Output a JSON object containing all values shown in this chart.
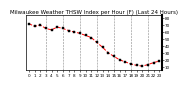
{
  "title": "Milwaukee Weather THSW Index per Hour (F) (Last 24 Hours)",
  "background_color": "#ffffff",
  "line_color": "#ff0000",
  "marker_color": "#000000",
  "grid_color": "#888888",
  "ylim": [
    5,
    85
  ],
  "yticks": [
    10,
    20,
    30,
    40,
    50,
    60,
    70,
    80
  ],
  "hours": [
    0,
    1,
    2,
    3,
    4,
    5,
    6,
    7,
    8,
    9,
    10,
    11,
    12,
    13,
    14,
    15,
    16,
    17,
    18,
    19,
    20,
    21,
    22,
    23
  ],
  "values": [
    72,
    68,
    70,
    65,
    63,
    67,
    65,
    62,
    60,
    58,
    55,
    52,
    45,
    38,
    30,
    25,
    20,
    17,
    14,
    12,
    11,
    13,
    16,
    18
  ],
  "xlabel_hours": [
    0,
    1,
    2,
    3,
    4,
    5,
    6,
    7,
    8,
    9,
    10,
    11,
    12,
    13,
    14,
    15,
    16,
    17,
    18,
    19,
    20,
    21,
    22,
    23
  ],
  "xlabel_labels": [
    "0",
    "1",
    "2",
    "3",
    "4",
    "5",
    "6",
    "7",
    "8",
    "9",
    "10",
    "11",
    "12",
    "13",
    "14",
    "15",
    "16",
    "17",
    "18",
    "19",
    "20",
    "21",
    "22",
    "23"
  ],
  "vgrid_positions": [
    3,
    6,
    9,
    12,
    15,
    18,
    21
  ],
  "title_fontsize": 4,
  "tick_fontsize": 3,
  "line_width": 0.7,
  "marker_size": 1.8
}
